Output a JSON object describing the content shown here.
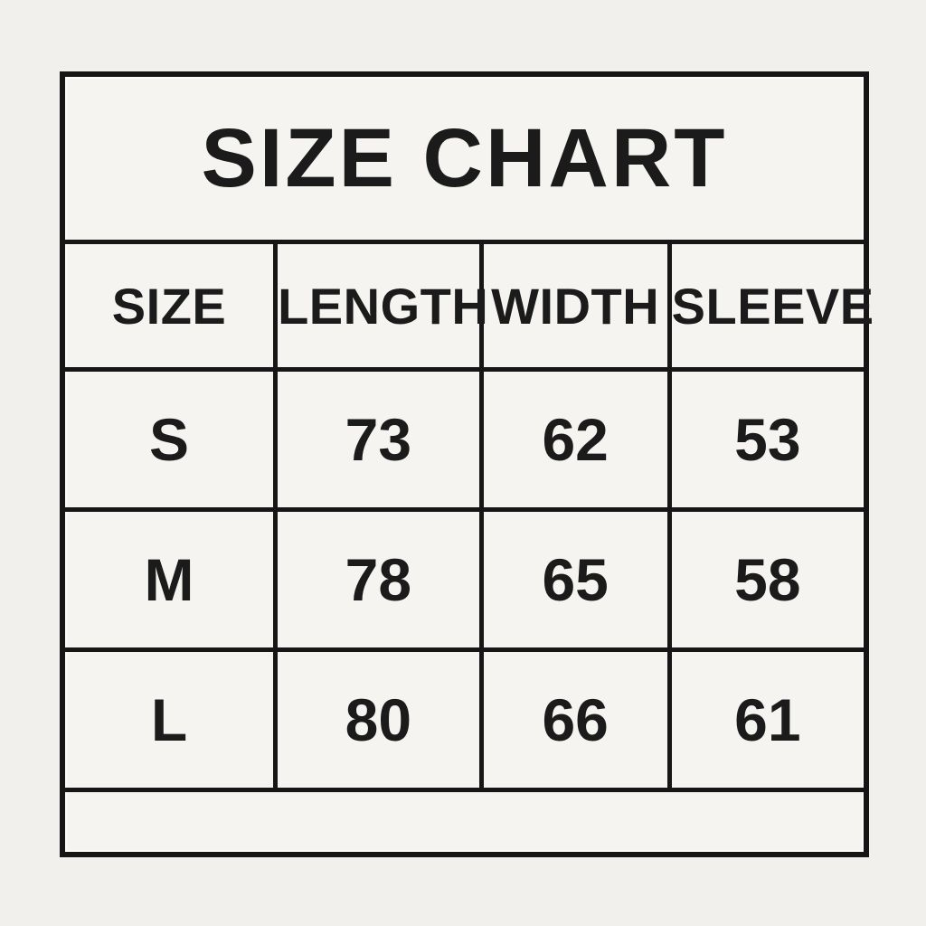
{
  "title": "SIZE CHART",
  "colors": {
    "page_background": "#f1f0ec",
    "cell_background": "#f5f4f0",
    "border": "#161616",
    "text": "#1b1b1b"
  },
  "chart_data": {
    "type": "table",
    "title": "SIZE CHART",
    "columns": [
      "SIZE",
      "LENGTH",
      "WIDTH",
      "SLEEVE"
    ],
    "rows": [
      [
        "S",
        "73",
        "62",
        "53"
      ],
      [
        "M",
        "78",
        "65",
        "58"
      ],
      [
        "L",
        "80",
        "66",
        "61"
      ]
    ],
    "footer_note": "",
    "layout": {
      "title_row_spans_all_columns": true,
      "empty_footer_row_spans_all_columns": true,
      "grid_on": true
    }
  }
}
